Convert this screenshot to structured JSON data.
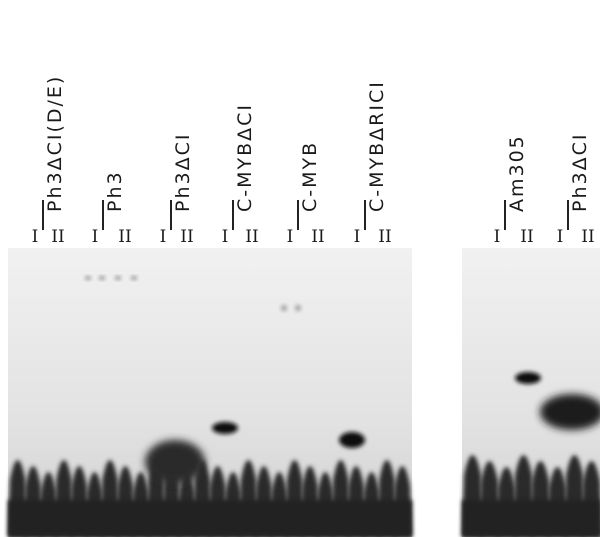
{
  "panels": [
    {
      "groups": [
        {
          "label": "Ph3ΔCI(D/E)",
          "lanes": [
            "I",
            "II"
          ]
        },
        {
          "label": "Ph3",
          "lanes": [
            "I",
            "II"
          ]
        },
        {
          "label": "Ph3ΔCI",
          "lanes": [
            "I",
            "II"
          ]
        },
        {
          "label": "C-MYBΔCI",
          "lanes": [
            "I",
            "II"
          ]
        },
        {
          "label": "C-MYB",
          "lanes": [
            "I",
            "II"
          ]
        },
        {
          "label": "C-MYBΔRICI",
          "lanes": [
            "I",
            "II"
          ]
        }
      ]
    },
    {
      "groups": [
        {
          "label": "Am305",
          "lanes": [
            "I",
            "II"
          ]
        },
        {
          "label": "Ph3ΔCI",
          "lanes": [
            "I",
            "II"
          ]
        }
      ]
    }
  ]
}
